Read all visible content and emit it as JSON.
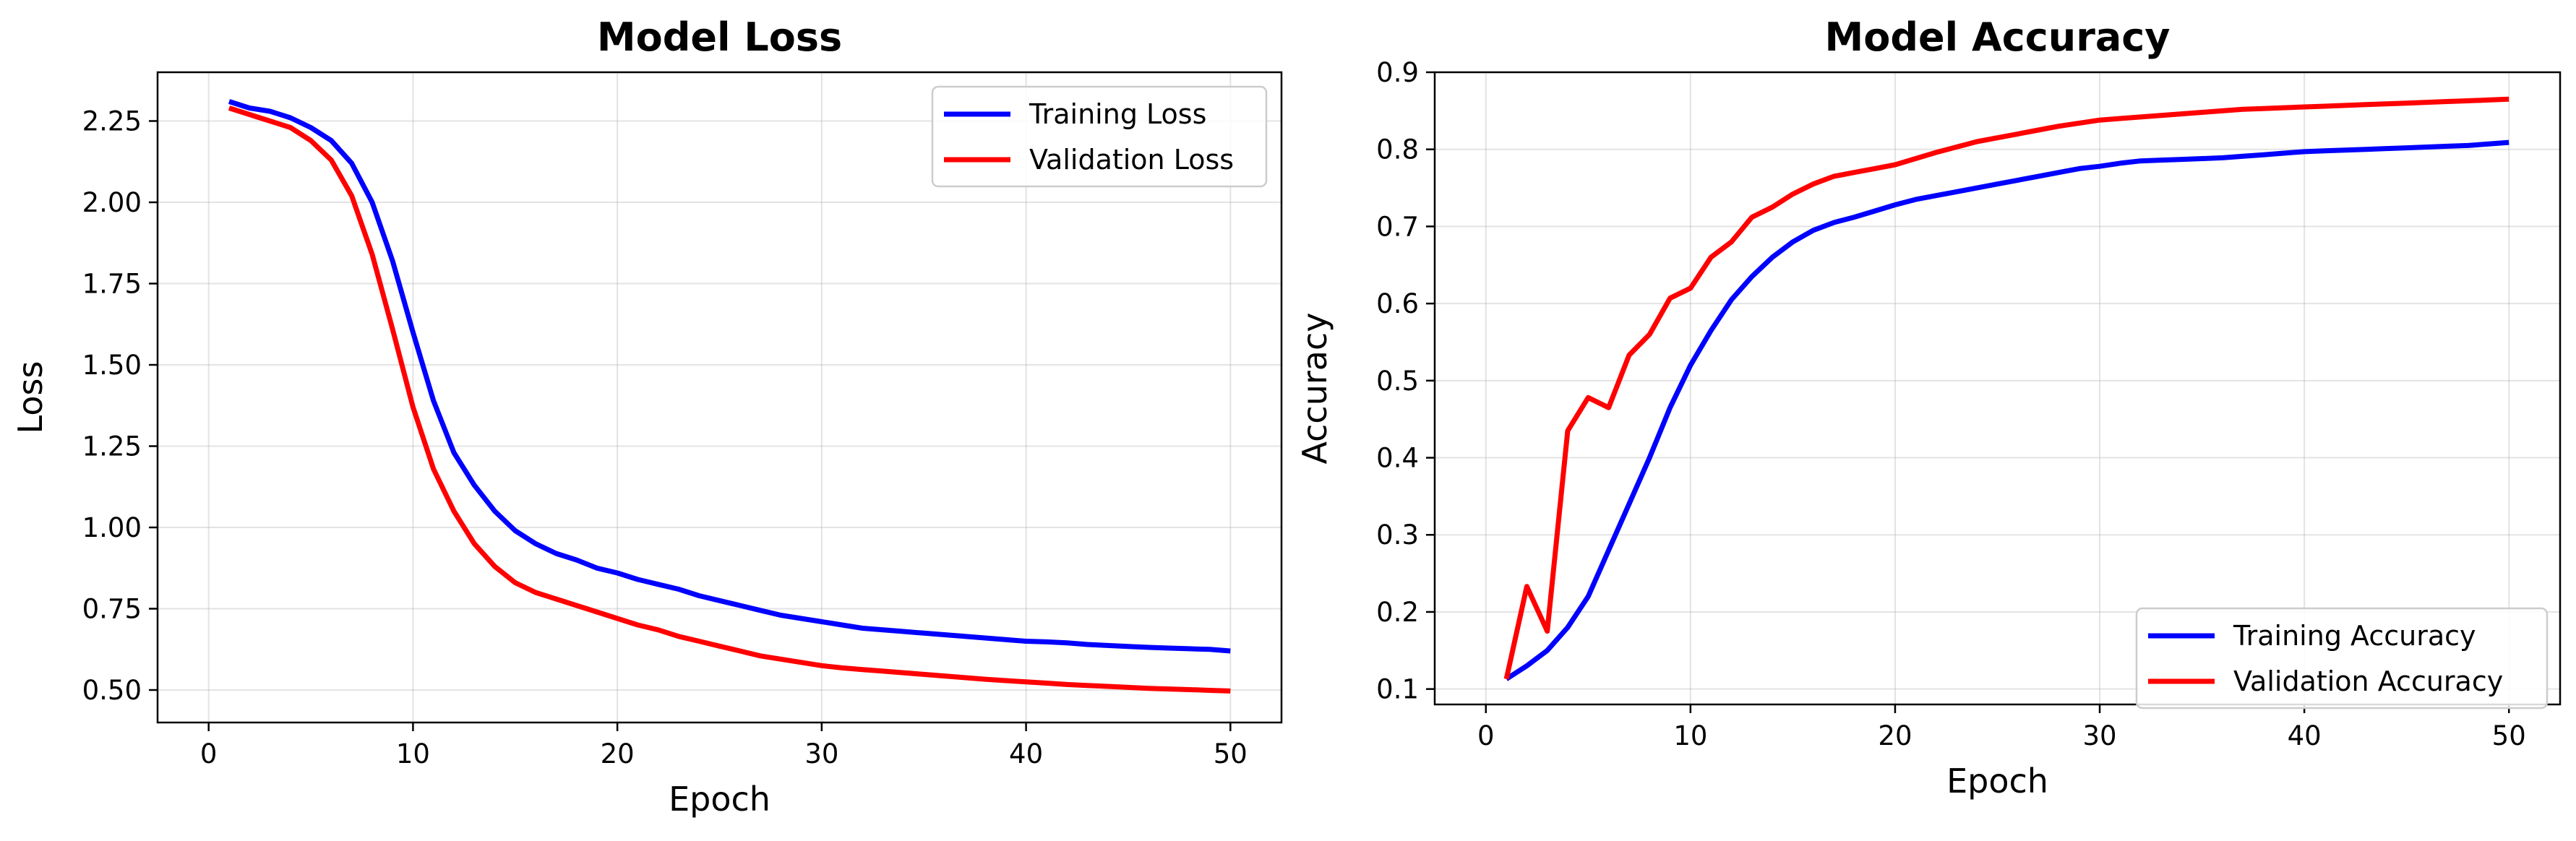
{
  "chart_data": [
    {
      "type": "line",
      "title": "Model Loss",
      "xlabel": "Epoch",
      "ylabel": "Loss",
      "xlim": [
        -2.5,
        52.5
      ],
      "ylim": [
        0.4,
        2.4
      ],
      "xticks": [
        0,
        10,
        20,
        30,
        40,
        50
      ],
      "xtick_labels": [
        "0",
        "10",
        "20",
        "30",
        "40",
        "50"
      ],
      "yticks": [
        0.5,
        0.75,
        1.0,
        1.25,
        1.5,
        1.75,
        2.0,
        2.25
      ],
      "ytick_labels": [
        "0.50",
        "0.75",
        "1.00",
        "1.25",
        "1.50",
        "1.75",
        "2.00",
        "2.25"
      ],
      "grid": true,
      "legend_position": "top-right",
      "x": [
        1,
        2,
        3,
        4,
        5,
        6,
        7,
        8,
        9,
        10,
        11,
        12,
        13,
        14,
        15,
        16,
        17,
        18,
        19,
        20,
        21,
        22,
        23,
        24,
        25,
        26,
        27,
        28,
        29,
        30,
        31,
        32,
        33,
        34,
        35,
        36,
        37,
        38,
        39,
        40,
        41,
        42,
        43,
        44,
        45,
        46,
        47,
        48,
        49,
        50
      ],
      "series": [
        {
          "name": "Training Loss",
          "color": "#0000ff",
          "values": [
            2.31,
            2.29,
            2.28,
            2.26,
            2.23,
            2.19,
            2.12,
            2.0,
            1.82,
            1.6,
            1.39,
            1.23,
            1.13,
            1.05,
            0.99,
            0.95,
            0.92,
            0.9,
            0.875,
            0.86,
            0.84,
            0.825,
            0.81,
            0.79,
            0.775,
            0.76,
            0.745,
            0.73,
            0.72,
            0.71,
            0.7,
            0.69,
            0.685,
            0.68,
            0.675,
            0.67,
            0.665,
            0.66,
            0.655,
            0.65,
            0.648,
            0.645,
            0.64,
            0.637,
            0.634,
            0.631,
            0.629,
            0.627,
            0.625,
            0.62
          ]
        },
        {
          "name": "Validation Loss",
          "color": "#ff0000",
          "values": [
            2.29,
            2.27,
            2.25,
            2.23,
            2.19,
            2.13,
            2.02,
            1.84,
            1.61,
            1.37,
            1.18,
            1.05,
            0.95,
            0.88,
            0.83,
            0.8,
            0.78,
            0.76,
            0.74,
            0.72,
            0.7,
            0.685,
            0.665,
            0.65,
            0.635,
            0.62,
            0.605,
            0.595,
            0.585,
            0.575,
            0.568,
            0.563,
            0.558,
            0.553,
            0.548,
            0.543,
            0.538,
            0.533,
            0.529,
            0.525,
            0.521,
            0.517,
            0.514,
            0.511,
            0.508,
            0.505,
            0.503,
            0.501,
            0.499,
            0.497
          ]
        }
      ]
    },
    {
      "type": "line",
      "title": "Model Accuracy",
      "xlabel": "Epoch",
      "ylabel": "Accuracy",
      "xlim": [
        -2.5,
        52.5
      ],
      "ylim": [
        0.08,
        0.9
      ],
      "xticks": [
        0,
        10,
        20,
        30,
        40,
        50
      ],
      "xtick_labels": [
        "0",
        "10",
        "20",
        "30",
        "40",
        "50"
      ],
      "yticks": [
        0.1,
        0.2,
        0.3,
        0.4,
        0.5,
        0.6,
        0.7,
        0.8,
        0.9
      ],
      "ytick_labels": [
        "0.1",
        "0.2",
        "0.3",
        "0.4",
        "0.5",
        "0.6",
        "0.7",
        "0.8",
        "0.9"
      ],
      "grid": true,
      "legend_position": "bottom-right",
      "x": [
        1,
        2,
        3,
        4,
        5,
        6,
        7,
        8,
        9,
        10,
        11,
        12,
        13,
        14,
        15,
        16,
        17,
        18,
        19,
        20,
        21,
        22,
        23,
        24,
        25,
        26,
        27,
        28,
        29,
        30,
        31,
        32,
        33,
        34,
        35,
        36,
        37,
        38,
        39,
        40,
        41,
        42,
        43,
        44,
        45,
        46,
        47,
        48,
        49,
        50
      ],
      "series": [
        {
          "name": "Training Accuracy",
          "color": "#0000ff",
          "values": [
            0.113,
            0.13,
            0.15,
            0.18,
            0.22,
            0.28,
            0.34,
            0.4,
            0.465,
            0.52,
            0.565,
            0.605,
            0.635,
            0.66,
            0.68,
            0.695,
            0.705,
            0.712,
            0.72,
            0.728,
            0.735,
            0.74,
            0.745,
            0.75,
            0.755,
            0.76,
            0.765,
            0.77,
            0.775,
            0.778,
            0.782,
            0.785,
            0.786,
            0.787,
            0.788,
            0.789,
            0.791,
            0.793,
            0.795,
            0.797,
            0.798,
            0.799,
            0.8,
            0.801,
            0.802,
            0.803,
            0.804,
            0.805,
            0.807,
            0.809
          ]
        },
        {
          "name": "Validation Accuracy",
          "color": "#ff0000",
          "values": [
            0.113,
            0.233,
            0.175,
            0.435,
            0.478,
            0.465,
            0.533,
            0.56,
            0.607,
            0.62,
            0.66,
            0.68,
            0.712,
            0.725,
            0.742,
            0.755,
            0.765,
            0.77,
            0.775,
            0.78,
            0.788,
            0.796,
            0.803,
            0.81,
            0.815,
            0.82,
            0.825,
            0.83,
            0.834,
            0.838,
            0.84,
            0.842,
            0.844,
            0.846,
            0.848,
            0.85,
            0.852,
            0.853,
            0.854,
            0.855,
            0.856,
            0.857,
            0.858,
            0.859,
            0.86,
            0.861,
            0.862,
            0.863,
            0.864,
            0.865
          ]
        }
      ]
    }
  ]
}
